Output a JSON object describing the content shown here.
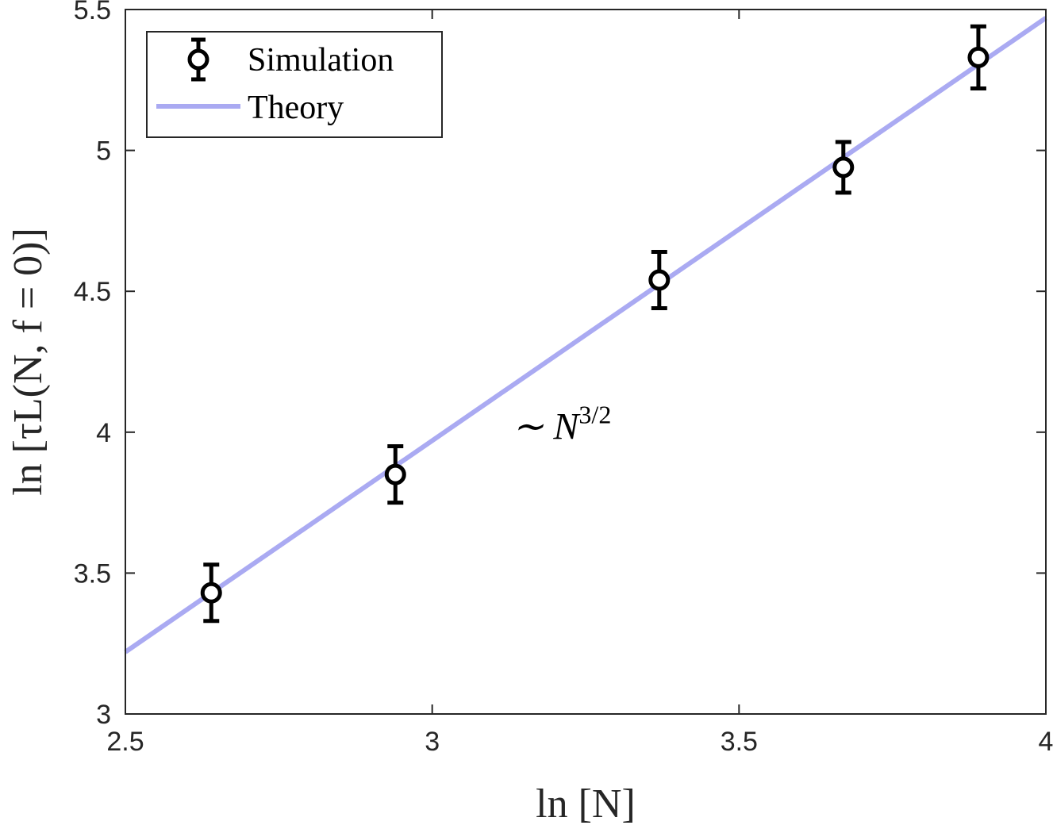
{
  "chart_data": {
    "type": "scatter",
    "xlabel": "ln [N]",
    "ylabel": "ln [τL(N, f = 0)]",
    "xlim": [
      2.5,
      4.0
    ],
    "ylim": [
      3.0,
      5.5
    ],
    "x_ticks": [
      "2.5",
      "3",
      "3.5",
      "4"
    ],
    "y_ticks": [
      "3",
      "3.5",
      "4",
      "4.5",
      "5",
      "5.5"
    ],
    "x_tick_values": [
      2.5,
      3.0,
      3.5,
      4.0
    ],
    "y_tick_values": [
      3.0,
      3.5,
      4.0,
      4.5,
      5.0,
      5.5
    ],
    "grid": false,
    "legend_position": "top-left",
    "series": [
      {
        "name": "Simulation",
        "kind": "errorbar",
        "color": "#000000",
        "x": [
          2.64,
          2.94,
          3.37,
          3.67,
          3.89
        ],
        "y": [
          3.43,
          3.85,
          4.54,
          4.94,
          5.33
        ],
        "err": [
          0.1,
          0.1,
          0.1,
          0.09,
          0.11
        ]
      },
      {
        "name": "Theory",
        "kind": "line",
        "color": "#aaaaf2",
        "x": [
          2.5,
          4.0
        ],
        "y": [
          3.22,
          5.47
        ]
      }
    ],
    "annotations": [
      {
        "text": "∼ N",
        "superscript": "3/2",
        "x": 3.13,
        "y": 4.02
      }
    ]
  }
}
